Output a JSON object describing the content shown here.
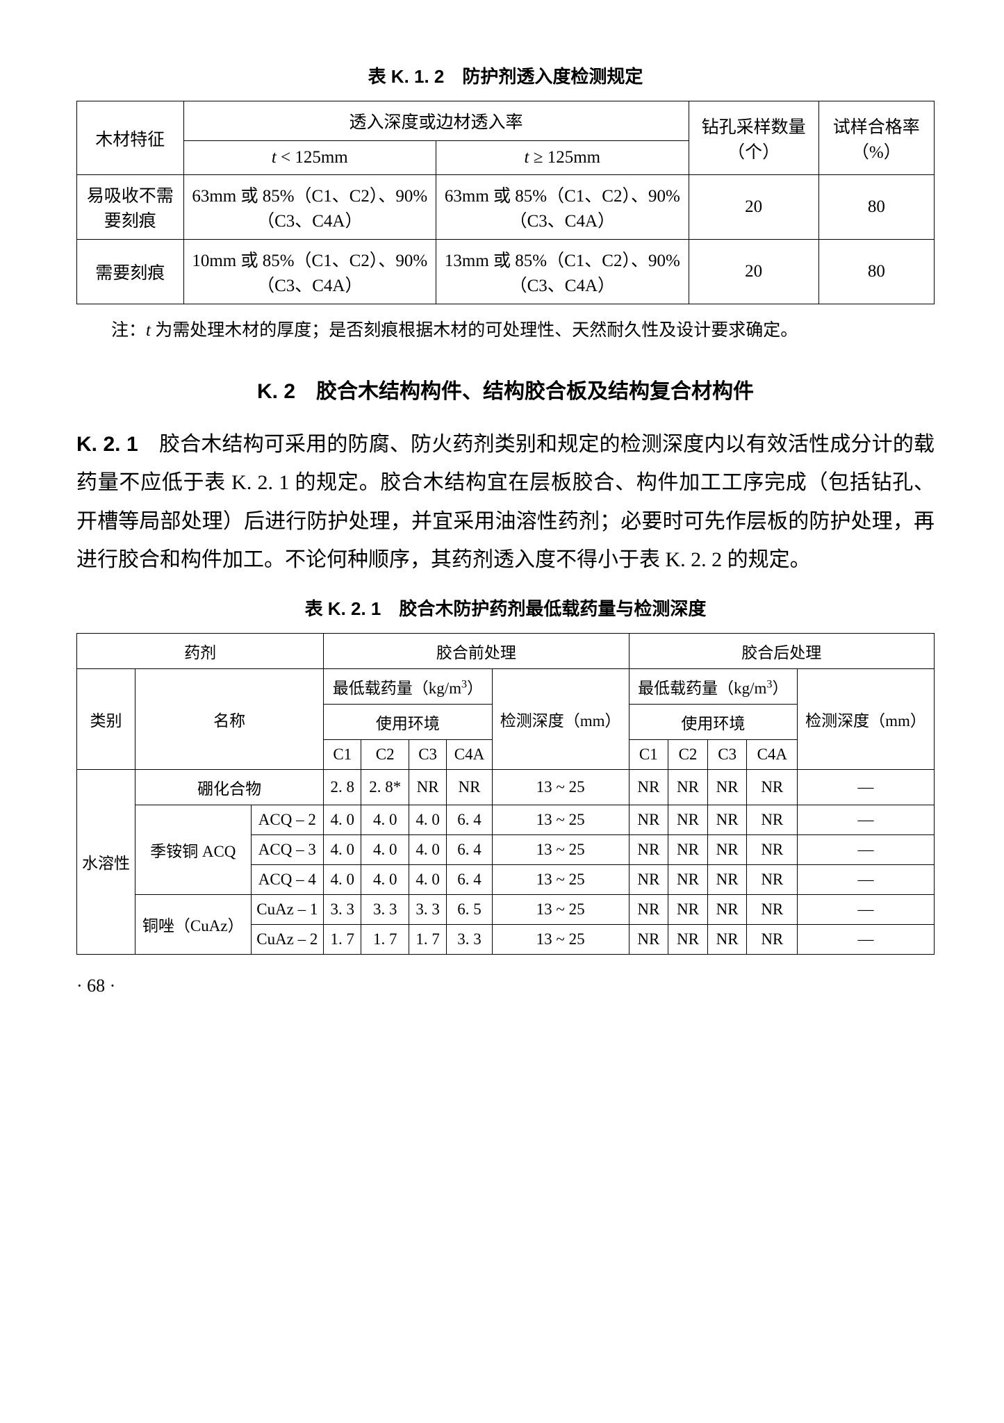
{
  "table1": {
    "title": "表 K. 1. 2　防护剂透入度检测规定",
    "head": {
      "feature": "木材特征",
      "depth_group": "透入深度或边材透入率",
      "lt": "t < 125mm",
      "ge": "t ≥ 125mm",
      "samples": "钻孔采样数量（个）",
      "pass": "试样合格率（%）"
    },
    "rows": [
      {
        "feature": "易吸收不需要刻痕",
        "lt": "63mm 或 85%（C1、C2）、90%（C3、C4A）",
        "ge": "63mm 或 85%（C1、C2）、90%（C3、C4A）",
        "samples": "20",
        "pass": "80"
      },
      {
        "feature": "需要刻痕",
        "lt": "10mm 或 85%（C1、C2）、90%（C3、C4A）",
        "ge": "13mm 或 85%（C1、C2）、90%（C3、C4A）",
        "samples": "20",
        "pass": "80"
      }
    ],
    "note": "注：t 为需处理木材的厚度；是否刻痕根据木材的可处理性、天然耐久性及设计要求确定。"
  },
  "section": {
    "heading": "K. 2　胶合木结构构件、结构胶合板及结构复合材构件",
    "para_label": "K. 2. 1",
    "para": "　胶合木结构可采用的防腐、防火药剂类别和规定的检测深度内以有效活性成分计的载药量不应低于表 K. 2. 1 的规定。胶合木结构宜在层板胶合、构件加工工序完成（包括钻孔、开槽等局部处理）后进行防护处理，并宜采用油溶性药剂；必要时可先作层板的防护处理，再进行胶合和构件加工。不论何种顺序，其药剂透入度不得小于表 K. 2. 2 的规定。"
  },
  "table2": {
    "title": "表 K. 2. 1　胶合木防护药剂最低载药量与检测深度",
    "head": {
      "agent": "药剂",
      "pre": "胶合前处理",
      "post": "胶合后处理",
      "cat": "类别",
      "name": "名称",
      "minload": "最低载药量（kg/m³）",
      "depth": "检测深度（mm）",
      "env": "使用环境",
      "c1": "C1",
      "c2": "C2",
      "c3": "C3",
      "c4a": "C4A"
    },
    "cat_water": "水溶性",
    "rows": [
      {
        "group": "硼化合物",
        "name": "",
        "span": true,
        "pre": [
          "2. 8",
          "2. 8*",
          "NR",
          "NR",
          "13 ~ 25"
        ],
        "post": [
          "NR",
          "NR",
          "NR",
          "NR",
          "—"
        ]
      },
      {
        "group": "季铵铜 ACQ",
        "name": "ACQ – 2",
        "pre": [
          "4. 0",
          "4. 0",
          "4. 0",
          "6. 4",
          "13 ~ 25"
        ],
        "post": [
          "NR",
          "NR",
          "NR",
          "NR",
          "—"
        ]
      },
      {
        "group": "",
        "name": "ACQ – 3",
        "pre": [
          "4. 0",
          "4. 0",
          "4. 0",
          "6. 4",
          "13 ~ 25"
        ],
        "post": [
          "NR",
          "NR",
          "NR",
          "NR",
          "—"
        ]
      },
      {
        "group": "",
        "name": "ACQ – 4",
        "pre": [
          "4. 0",
          "4. 0",
          "4. 0",
          "6. 4",
          "13 ~ 25"
        ],
        "post": [
          "NR",
          "NR",
          "NR",
          "NR",
          "—"
        ]
      },
      {
        "group": "铜唑（CuAz）",
        "name": "CuAz – 1",
        "pre": [
          "3. 3",
          "3. 3",
          "3. 3",
          "6. 5",
          "13 ~ 25"
        ],
        "post": [
          "NR",
          "NR",
          "NR",
          "NR",
          "—"
        ]
      },
      {
        "group": "",
        "name": "CuAz – 2",
        "pre": [
          "1. 7",
          "1. 7",
          "1. 7",
          "3. 3",
          "13 ~ 25"
        ],
        "post": [
          "NR",
          "NR",
          "NR",
          "NR",
          "—"
        ]
      }
    ]
  },
  "page_num": "· 68 ·"
}
